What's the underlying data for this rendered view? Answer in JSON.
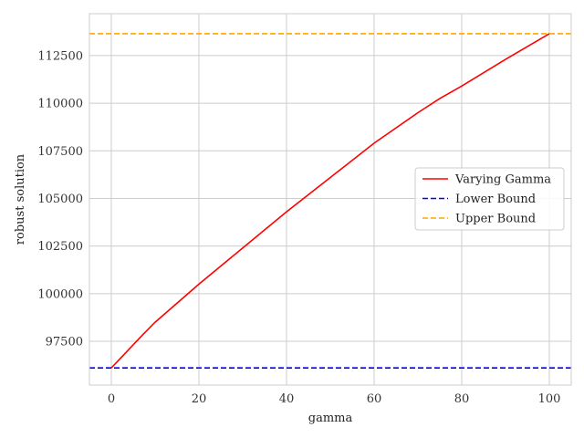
{
  "chart_data": {
    "type": "line",
    "xlabel": "gamma",
    "ylabel": "robust solution",
    "xlim": [
      -5,
      105
    ],
    "ylim": [
      95200,
      114700
    ],
    "x_ticks": [
      0,
      20,
      40,
      60,
      80,
      100
    ],
    "y_ticks": [
      97500,
      100000,
      102500,
      105000,
      107500,
      110000,
      112500
    ],
    "grid": true,
    "legend_position": "center-right",
    "series": [
      {
        "name": "Varying Gamma",
        "color": "#ff0000",
        "style": "solid",
        "points": [
          [
            0,
            96100
          ],
          [
            7,
            97800
          ],
          [
            10,
            98500
          ],
          [
            20,
            100500
          ],
          [
            30,
            102400
          ],
          [
            40,
            104300
          ],
          [
            50,
            106100
          ],
          [
            60,
            107900
          ],
          [
            70,
            109500
          ],
          [
            75,
            110250
          ],
          [
            80,
            110900
          ],
          [
            90,
            112300
          ],
          [
            100,
            113650
          ]
        ]
      },
      {
        "name": "Lower Bound",
        "color": "#0000ff",
        "style": "dashed",
        "y": 96100
      },
      {
        "name": "Upper Bound",
        "color": "#ffa500",
        "style": "dashed",
        "y": 113650
      }
    ]
  }
}
